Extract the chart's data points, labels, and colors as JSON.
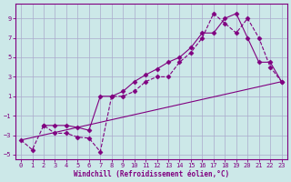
{
  "xlabel": "Windchill (Refroidissement éolien,°C)",
  "bg_color": "#cce8e8",
  "line_color": "#800080",
  "grid_color": "#aaaacc",
  "xlim": [
    -0.5,
    23.5
  ],
  "ylim": [
    -5.5,
    10.5
  ],
  "xticks": [
    0,
    1,
    2,
    3,
    4,
    5,
    6,
    7,
    8,
    9,
    10,
    11,
    12,
    13,
    14,
    15,
    16,
    17,
    18,
    19,
    20,
    21,
    22,
    23
  ],
  "yticks": [
    -5,
    -3,
    -1,
    1,
    3,
    5,
    7,
    9
  ],
  "yticklabels": [
    "-5",
    "-3",
    "-1",
    "1",
    "3",
    "5",
    "7",
    "9"
  ],
  "line1_x": [
    0,
    1,
    2,
    3,
    4,
    5,
    6,
    7,
    8,
    9,
    10,
    11,
    12,
    13,
    14,
    15,
    16,
    17,
    18,
    19,
    20,
    21,
    22,
    23
  ],
  "line1_y": [
    -3.5,
    -4.5,
    -2.0,
    -2.8,
    -2.8,
    -3.2,
    -3.3,
    -4.7,
    1.0,
    1.0,
    1.5,
    2.5,
    3.0,
    3.0,
    4.5,
    5.5,
    7.0,
    9.5,
    8.5,
    7.5,
    9.0,
    7.0,
    4.0,
    2.5
  ],
  "line2_x": [
    2,
    3,
    4,
    5,
    6,
    7,
    8,
    9,
    10,
    11,
    12,
    13,
    14,
    15,
    16,
    17,
    18,
    19,
    20,
    21,
    22,
    23
  ],
  "line2_y": [
    -2.0,
    -2.0,
    -2.0,
    -2.2,
    -2.5,
    1.0,
    1.0,
    1.5,
    2.5,
    3.2,
    3.8,
    4.5,
    5.0,
    6.0,
    7.5,
    7.5,
    9.0,
    9.5,
    7.0,
    4.5,
    4.5,
    2.5
  ],
  "line3_x": [
    0,
    23
  ],
  "line3_y": [
    -3.5,
    2.5
  ]
}
